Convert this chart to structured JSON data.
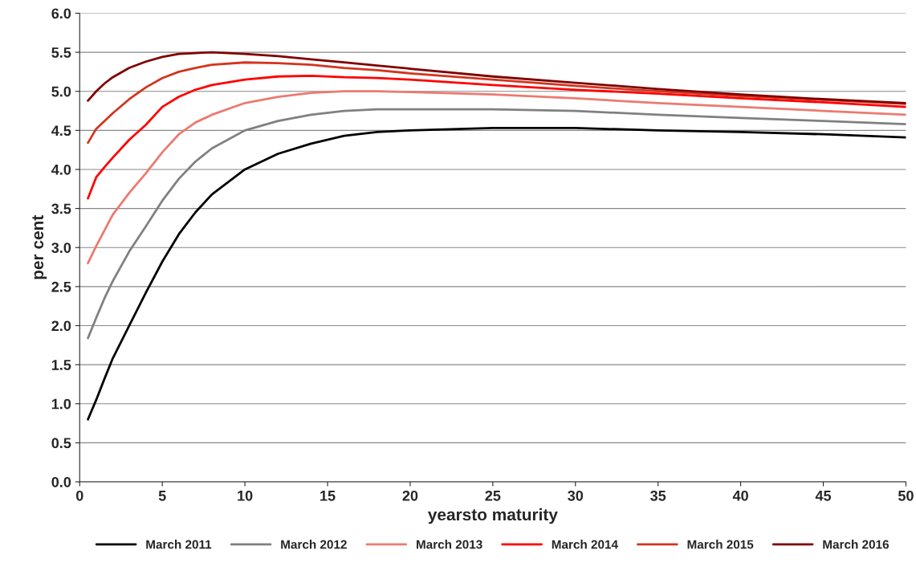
{
  "chart_data": {
    "type": "line",
    "xlabel": "yearsto maturity",
    "ylabel": "per cent",
    "x": [
      0.5,
      1,
      1.5,
      2,
      3,
      4,
      5,
      6,
      7,
      8,
      10,
      12,
      14,
      16,
      18,
      20,
      25,
      30,
      35,
      40,
      45,
      50
    ],
    "series": [
      {
        "name": "March 2011",
        "color": "#000000",
        "values": [
          0.8,
          1.05,
          1.32,
          1.58,
          2.0,
          2.42,
          2.82,
          3.17,
          3.45,
          3.68,
          4.0,
          4.2,
          4.33,
          4.43,
          4.48,
          4.5,
          4.53,
          4.53,
          4.5,
          4.48,
          4.45,
          4.41
        ]
      },
      {
        "name": "March 2012",
        "color": "#808080",
        "values": [
          1.84,
          2.1,
          2.35,
          2.57,
          2.95,
          3.27,
          3.6,
          3.88,
          4.1,
          4.27,
          4.5,
          4.62,
          4.7,
          4.75,
          4.77,
          4.77,
          4.77,
          4.75,
          4.7,
          4.66,
          4.62,
          4.58
        ]
      },
      {
        "name": "March 2013",
        "color": "#ec7a70",
        "values": [
          2.8,
          3.02,
          3.22,
          3.42,
          3.7,
          3.95,
          4.22,
          4.45,
          4.6,
          4.7,
          4.85,
          4.93,
          4.98,
          5.0,
          5.0,
          4.99,
          4.96,
          4.91,
          4.85,
          4.8,
          4.75,
          4.7
        ]
      },
      {
        "name": "March 2014",
        "color": "#ff0000",
        "values": [
          3.63,
          3.9,
          4.03,
          4.15,
          4.38,
          4.57,
          4.8,
          4.93,
          5.02,
          5.08,
          5.15,
          5.19,
          5.2,
          5.18,
          5.17,
          5.15,
          5.08,
          5.02,
          4.97,
          4.91,
          4.86,
          4.8
        ]
      },
      {
        "name": "March 2015",
        "color": "#d2351e",
        "values": [
          4.34,
          4.52,
          4.62,
          4.72,
          4.9,
          5.05,
          5.17,
          5.25,
          5.3,
          5.34,
          5.37,
          5.36,
          5.34,
          5.3,
          5.27,
          5.23,
          5.15,
          5.07,
          5.0,
          4.94,
          4.89,
          4.84
        ]
      },
      {
        "name": "March 2016",
        "color": "#800000",
        "values": [
          4.88,
          5.0,
          5.1,
          5.18,
          5.3,
          5.38,
          5.44,
          5.48,
          5.49,
          5.5,
          5.48,
          5.45,
          5.41,
          5.37,
          5.33,
          5.29,
          5.19,
          5.11,
          5.03,
          4.96,
          4.9,
          4.85
        ]
      }
    ],
    "xlim": [
      0,
      50
    ],
    "xticks": [
      0,
      5,
      10,
      15,
      20,
      25,
      30,
      35,
      40,
      45,
      50
    ],
    "ylim": [
      0,
      6
    ],
    "yticks": [
      {
        "value": 0,
        "label": "0.0"
      },
      {
        "value": 0.5,
        "label": "0.5"
      },
      {
        "value": 1,
        "label": "1.0"
      },
      {
        "value": 1.5,
        "label": "1.5"
      },
      {
        "value": 2,
        "label": "2.0"
      },
      {
        "value": 2.5,
        "label": "2.5"
      },
      {
        "value": 3,
        "label": "3.0"
      },
      {
        "value": 3.5,
        "label": "3.5"
      },
      {
        "value": 4,
        "label": "4.0"
      },
      {
        "value": 4.5,
        "label": "4.5"
      },
      {
        "value": 5,
        "label": "5.0"
      },
      {
        "value": 5.5,
        "label": "5.5"
      },
      {
        "value": 6,
        "label": "6.0"
      }
    ],
    "grid": "y",
    "legend": "bottom",
    "marker": "none",
    "line_style": "solid"
  }
}
